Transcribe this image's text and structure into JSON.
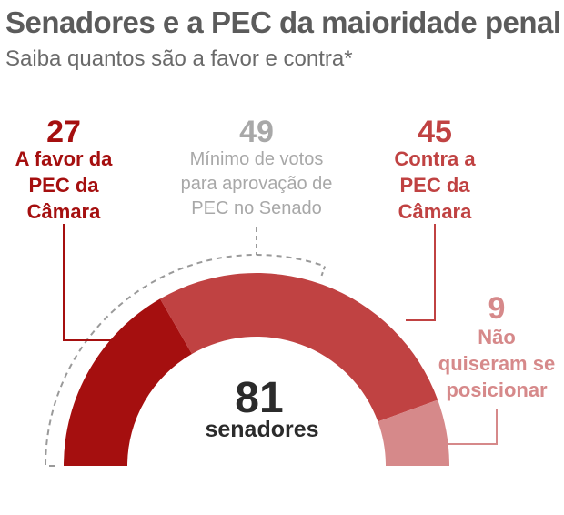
{
  "title": "Senadores e a PEC da maioridade penal",
  "subtitle": "Saiba quantos são a favor e contra*",
  "colors": {
    "favor": "#a50f0f",
    "contra": "#c04242",
    "nao": "#d6898a",
    "minimo": "#a8a8a8",
    "total_text": "#2b2b2b"
  },
  "chart_data": {
    "type": "pie",
    "shape": "half-donut",
    "total": "81",
    "total_label": "senadores",
    "series": [
      {
        "key": "favor",
        "value": 27,
        "value_text": "27",
        "label_lines": [
          "A favor da",
          "PEC da",
          "Câmara"
        ]
      },
      {
        "key": "contra",
        "value": 45,
        "value_text": "45",
        "label_lines": [
          "Contra a",
          "PEC da",
          "Câmara"
        ]
      },
      {
        "key": "nao",
        "value": 9,
        "value_text": "9",
        "label_lines": [
          "Não",
          "quiseram se",
          "posicionar"
        ]
      }
    ],
    "threshold": {
      "value": 49,
      "value_text": "49",
      "label_lines": [
        "Mínimo de votos",
        "para aprovação de",
        "PEC no Senado"
      ]
    }
  }
}
